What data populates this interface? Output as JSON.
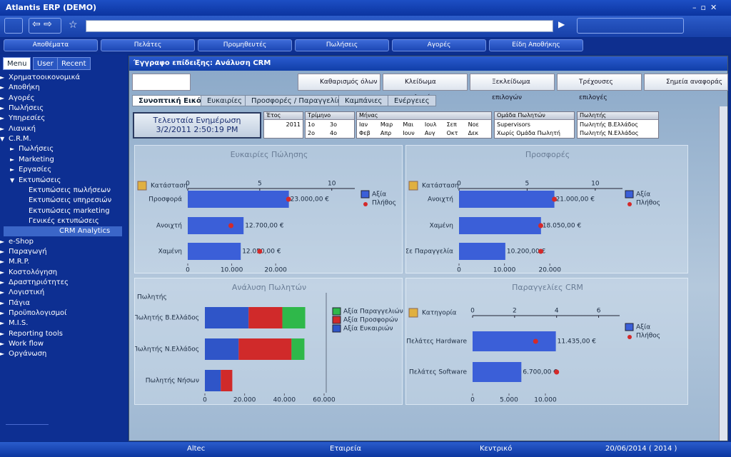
{
  "app_title": "Atlantis ERP (DEMO)",
  "menu_bar": [
    "Αποθέματα",
    "Πελάτες",
    "Προμηθευτές",
    "Πωλήσεις",
    "Αγορές",
    "Είδη Αποθήκης"
  ],
  "sidebar": {
    "tabs": [
      "Menu",
      "User",
      "Recent"
    ],
    "tree": [
      {
        "label": "Χρηματοοικονομικά"
      },
      {
        "label": "Αποθήκη"
      },
      {
        "label": "Αγορές"
      },
      {
        "label": "Πωλήσεις"
      },
      {
        "label": "Υπηρεσίες"
      },
      {
        "label": "Λιανική"
      },
      {
        "label": "C.R.M.",
        "children": [
          {
            "label": "Πωλήσεις"
          },
          {
            "label": "Marketing"
          },
          {
            "label": "Εργασίες"
          },
          {
            "label": "Εκτυπώσεις",
            "children": [
              {
                "label": "Εκτυπώσεις πωλήσεων"
              },
              {
                "label": "Εκτυπώσεις υπηρεσιών"
              },
              {
                "label": "Εκτυπώσεις marketing"
              },
              {
                "label": "Γενικές εκτυπώσεις"
              },
              {
                "label": "CRM Analytics",
                "selected": true
              }
            ]
          }
        ]
      },
      {
        "label": "e-Shop"
      },
      {
        "label": "Παραγωγή"
      },
      {
        "label": "M.R.P."
      },
      {
        "label": "Κοστολόγηση"
      },
      {
        "label": "Δραστηριότητες"
      },
      {
        "label": "Λογιστική"
      },
      {
        "label": "Πάγια"
      },
      {
        "label": "Προϋπολογισμοί"
      },
      {
        "label": "M.I.S."
      },
      {
        "label": "Reporting tools"
      },
      {
        "label": "Work flow"
      },
      {
        "label": "Οργάνωση"
      }
    ]
  },
  "document": {
    "title": "Έγγραφο επίδειξης: Ανάλυση CRM",
    "toolbar": [
      "Καθαρισμός όλων",
      "Κλείδωμα επιλογών",
      "Ξεκλείδωμα επιλογών",
      "Τρέχουσες επιλογές",
      "Σημεία αναφοράς"
    ],
    "tabs": [
      "Συνοπτική Εικόνα",
      "Ευκαιρίες",
      "Προσφορές / Παραγγελίες",
      "Καμπάνιες",
      "Ενέργειες"
    ],
    "last_update": {
      "label": "Τελευταία Ενημέρωση",
      "value": "3/2/2011 2:50:19 PM"
    },
    "filters": [
      {
        "title": "Έτος",
        "options": [
          "2011"
        ]
      },
      {
        "title": "Τρίμηνο",
        "options": [
          "1ο",
          "2ο",
          "3ο",
          "4ο"
        ]
      },
      {
        "title": "Μήνας",
        "options": [
          "Ιαν",
          "Φεβ",
          "Μαρ",
          "Απρ",
          "Μαι",
          "Ιουν",
          "Ιουλ",
          "Αυγ",
          "Σεπ",
          "Οκτ",
          "Νοε",
          "Δεκ"
        ]
      },
      {
        "title": "Ομάδα Πωλητών",
        "options": [
          "Supervisors",
          "Χωρίς Ομάδα Πωλητή"
        ]
      },
      {
        "title": "Πωλητής",
        "options": [
          "Πωλητής Β.Ελλάδος",
          "Πωλητής Ν.Ελλάδος"
        ]
      }
    ],
    "charts": [
      {
        "type": "hbar",
        "title": "Ευκαιρίες Πώλησης",
        "dimension": "Κατάσταση",
        "categories": [
          "Προσφορά",
          "Ανοιχτή",
          "Χαμένη"
        ],
        "series": [
          {
            "name": "Αξία",
            "color": "#3b5fd8",
            "values": [
              23000,
              12700,
              12050
            ],
            "value_labels": [
              "23.000,00 €",
              "12.700,00 €",
              "12.050,00 €"
            ]
          },
          {
            "name": "Πλήθος",
            "color": "#d42a2a",
            "axis": "x2",
            "values": [
              7,
              3,
              5
            ]
          }
        ],
        "xlim": [
          0,
          38000
        ],
        "xticks": [
          0,
          {
            "value": 10000,
            "label": "10.000"
          },
          {
            "value": 20000,
            "label": "20.000"
          }
        ],
        "x2lim": [
          0,
          11.6
        ],
        "x2ticks": [
          0,
          5,
          10
        ]
      },
      {
        "type": "hbar",
        "title": "Προσφορές",
        "dimension": "Κατάσταση",
        "categories": [
          "Ανοιχτή",
          "Χαμένη",
          "Σε Παραγγελία"
        ],
        "series": [
          {
            "name": "Αξία",
            "color": "#3b5fd8",
            "values": [
              21000,
              18050,
              10200
            ],
            "value_labels": [
              "21.000,00 €",
              "18.050,00 €",
              "10.200,00 €"
            ]
          },
          {
            "name": "Πλήθος",
            "color": "#d42a2a",
            "axis": "x2",
            "values": [
              7,
              6,
              6
            ]
          }
        ],
        "xlim": [
          0,
          36000
        ],
        "xticks": [
          0,
          {
            "value": 10000,
            "label": "10.000"
          },
          {
            "value": 20000,
            "label": "20.000"
          }
        ],
        "x2lim": [
          0,
          12
        ],
        "x2ticks": [
          0,
          5,
          10
        ]
      },
      {
        "type": "stacked-hbar",
        "title": "Ανάλυση Πωλητών",
        "dimension": "Πωλητής",
        "categories": [
          "Πωλητής Β.Ελλάδος",
          "Πωλητής Ν.Ελλάδος",
          "Πωλητής Νήσων"
        ],
        "series": [
          {
            "name": "Αξία Παραγγελιών",
            "color": "#2fb84a",
            "values": [
              11500,
              6500,
              0
            ]
          },
          {
            "name": "Αξία Προσφορών",
            "color": "#d02a2a",
            "values": [
              17000,
              26600,
              5800
            ]
          },
          {
            "name": "Αξία Ευκαιριών",
            "color": "#2f55c8",
            "values": [
              22000,
              17000,
              8000
            ]
          }
        ],
        "xlim": [
          0,
          60000
        ],
        "xticks": [
          0,
          {
            "value": 20000,
            "label": "20.000"
          },
          {
            "value": 40000,
            "label": "40.000"
          },
          {
            "value": 60000,
            "label": "60.000"
          }
        ]
      },
      {
        "type": "hbar",
        "title": "Παραγγελίες CRM",
        "dimension": "Κατηγορία",
        "categories": [
          "Πελάτες Hardware",
          "Πελάτες Software"
        ],
        "series": [
          {
            "name": "Αξία",
            "color": "#3b5fd8",
            "values": [
              11435,
              6700
            ],
            "value_labels": [
              "11.435,00 €",
              "6.700,00 €"
            ]
          },
          {
            "name": "Πλήθος",
            "color": "#d42a2a",
            "axis": "x2",
            "values": [
              3,
              4
            ]
          }
        ],
        "xlim": [
          0,
          20200
        ],
        "xticks": [
          0,
          {
            "value": 5000,
            "label": "5.000"
          },
          {
            "value": 10000,
            "label": "10.000"
          }
        ],
        "x2lim": [
          0,
          7
        ],
        "x2ticks": [
          0,
          2,
          4,
          6
        ]
      }
    ]
  },
  "status_bar": [
    "Altec",
    "Εταιρεία",
    "Κεντρικό",
    "20/06/2014 ( 2014 )"
  ]
}
